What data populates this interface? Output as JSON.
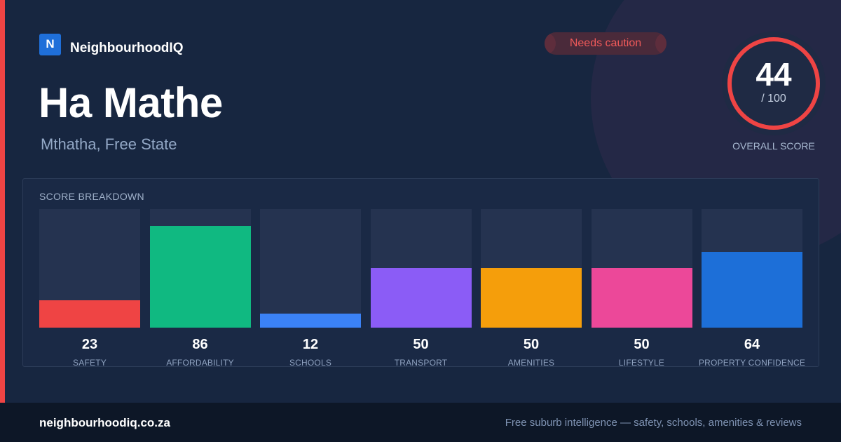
{
  "brand": {
    "logo_letter": "N",
    "name": "NeighbourhoodIQ"
  },
  "suburb": {
    "name": "Ha Mathe",
    "location": "Mthatha, Free State"
  },
  "badge": {
    "label": "Needs caution",
    "color": "#ef4444"
  },
  "overall": {
    "score": "44",
    "max_label": "/ 100",
    "fraction": 0.44,
    "label": "OVERALL SCORE",
    "color": "#ef4444"
  },
  "breakdown": {
    "title": "SCORE BREAKDOWN",
    "items": [
      {
        "label": "SAFETY",
        "value": 23,
        "color": "#ef4444"
      },
      {
        "label": "AFFORDABILITY",
        "value": 86,
        "color": "#10b981"
      },
      {
        "label": "SCHOOLS",
        "value": 12,
        "color": "#3b82f6"
      },
      {
        "label": "TRANSPORT",
        "value": 50,
        "color": "#8b5cf6"
      },
      {
        "label": "AMENITIES",
        "value": 50,
        "color": "#f59e0b"
      },
      {
        "label": "LIFESTYLE",
        "value": 50,
        "color": "#ec4899"
      },
      {
        "label": "PROPERTY CONFIDENCE",
        "value": 64,
        "color": "#1d6fd8"
      }
    ]
  },
  "footer": {
    "domain": "neighbourhoodiq.co.za",
    "tagline": "Free suburb intelligence — safety, schools, amenities & reviews"
  },
  "accent_color": "#ef4444"
}
